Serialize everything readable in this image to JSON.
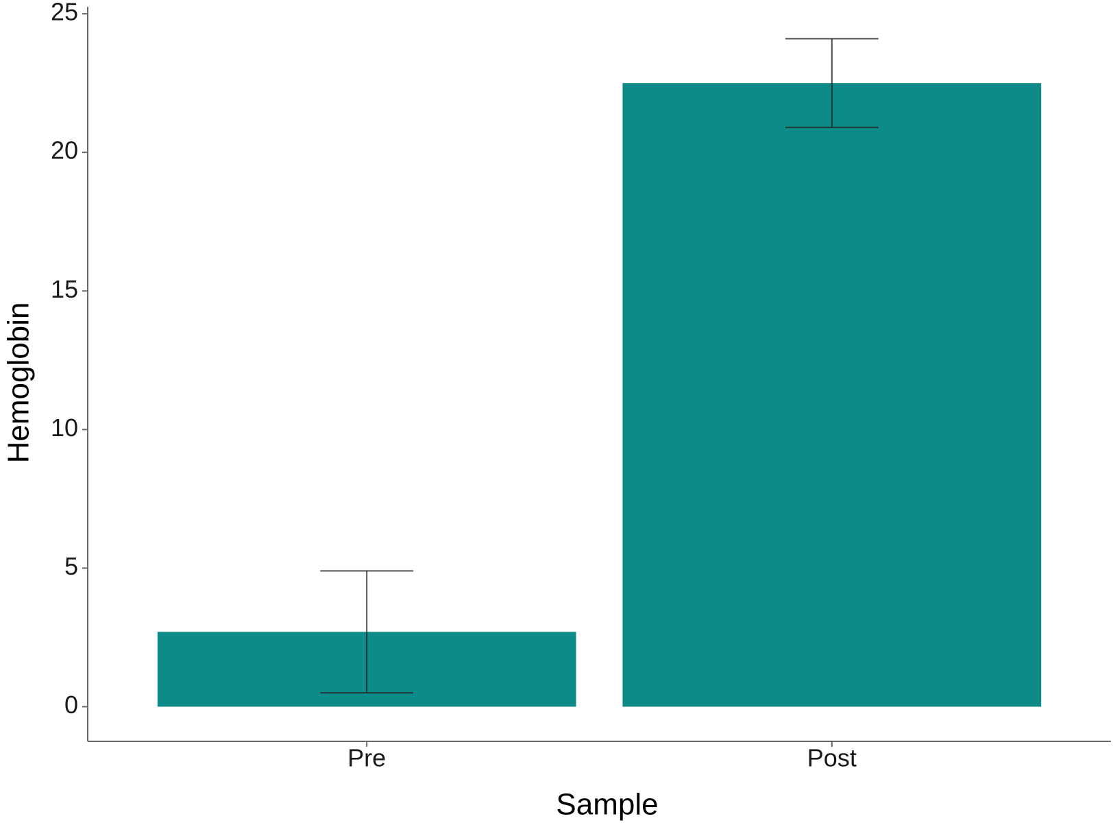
{
  "chart_data": {
    "type": "bar",
    "xlabel": "Sample",
    "ylabel": "Hemoglobin",
    "categories": [
      "Pre",
      "Post"
    ],
    "values": [
      2.7,
      22.5
    ],
    "errors": [
      2.2,
      1.6
    ],
    "color": "#0e8b89",
    "ylim": [
      -1.25,
      25.25
    ],
    "yticks": [
      0,
      5,
      10,
      15,
      20,
      25
    ],
    "grid": false
  }
}
